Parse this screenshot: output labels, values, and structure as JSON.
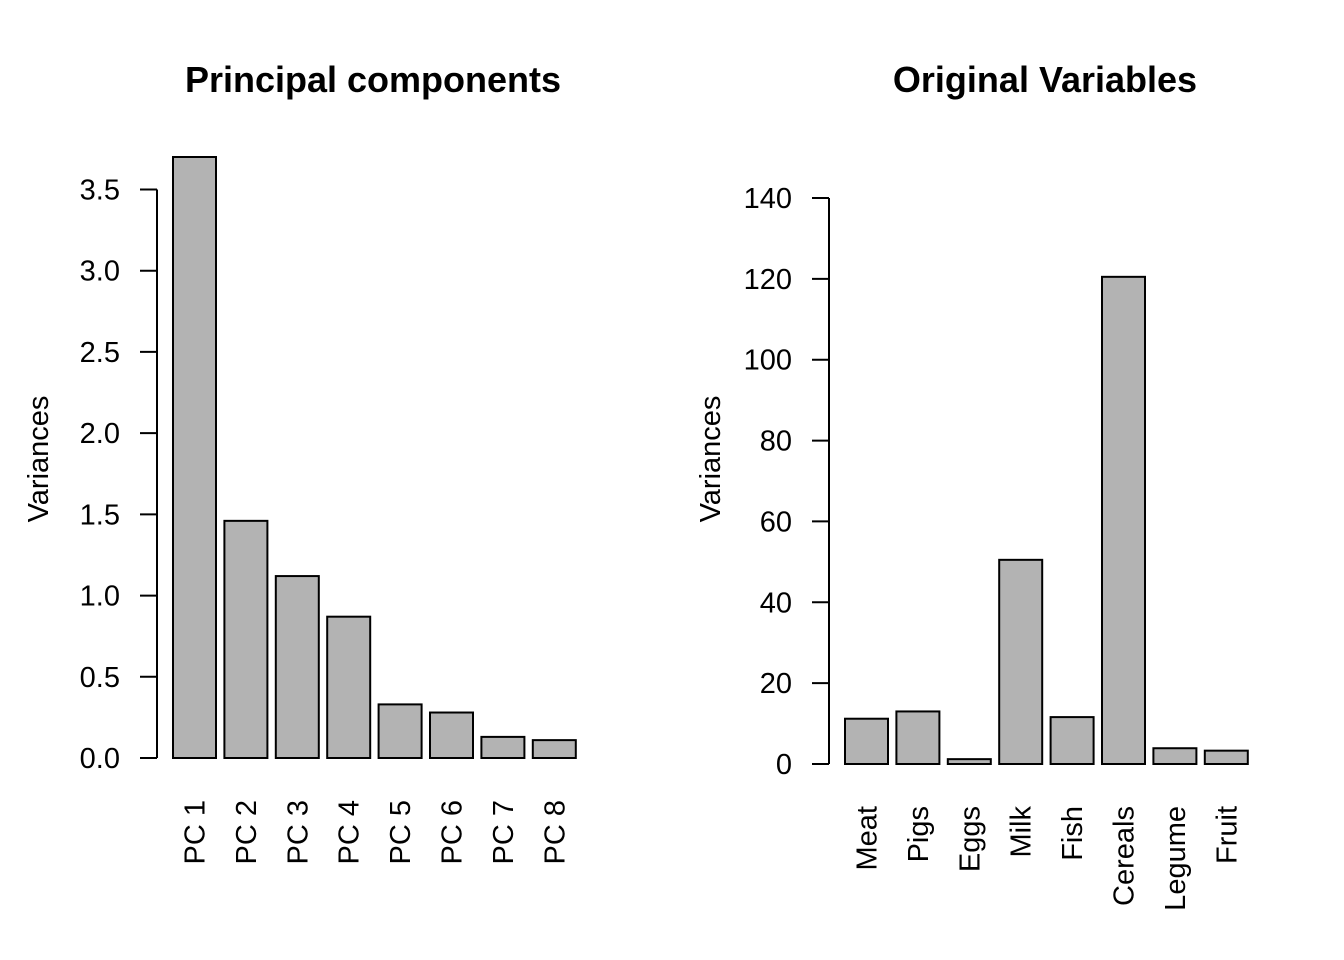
{
  "chart_data": [
    {
      "type": "bar",
      "title": "Principal components",
      "ylabel": "Variances",
      "xlabel": "",
      "categories": [
        "PC 1",
        "PC 2",
        "PC 3",
        "PC 4",
        "PC 5",
        "PC 6",
        "PC 7",
        "PC 8"
      ],
      "values": [
        3.7,
        1.46,
        1.12,
        0.87,
        0.33,
        0.28,
        0.13,
        0.11
      ],
      "ylim": [
        0,
        3.7
      ],
      "yticks": [
        0,
        0.5,
        1,
        1.5,
        2,
        2.5,
        3,
        3.5
      ],
      "ytick_labels": [
        "0.0",
        "0.5",
        "1.0",
        "1.5",
        "2.0",
        "2.5",
        "3.0",
        "3.5"
      ],
      "bar_color": "#b3b3b3",
      "grid": false
    },
    {
      "type": "bar",
      "title": "Original Variables",
      "ylabel": "Variances",
      "xlabel": "",
      "categories": [
        "Meat",
        "Pigs",
        "Eggs",
        "Milk",
        "Fish",
        "Cereals",
        "Legume",
        "Fruit"
      ],
      "values": [
        11.2,
        13.0,
        1.2,
        50.5,
        11.6,
        120.5,
        3.9,
        3.3
      ],
      "ylim": [
        0,
        140
      ],
      "yticks": [
        0,
        20,
        40,
        60,
        80,
        100,
        120,
        140
      ],
      "ytick_labels": [
        "0",
        "20",
        "40",
        "60",
        "80",
        "100",
        "120",
        "140"
      ],
      "bar_color": "#b3b3b3",
      "grid": false
    }
  ]
}
